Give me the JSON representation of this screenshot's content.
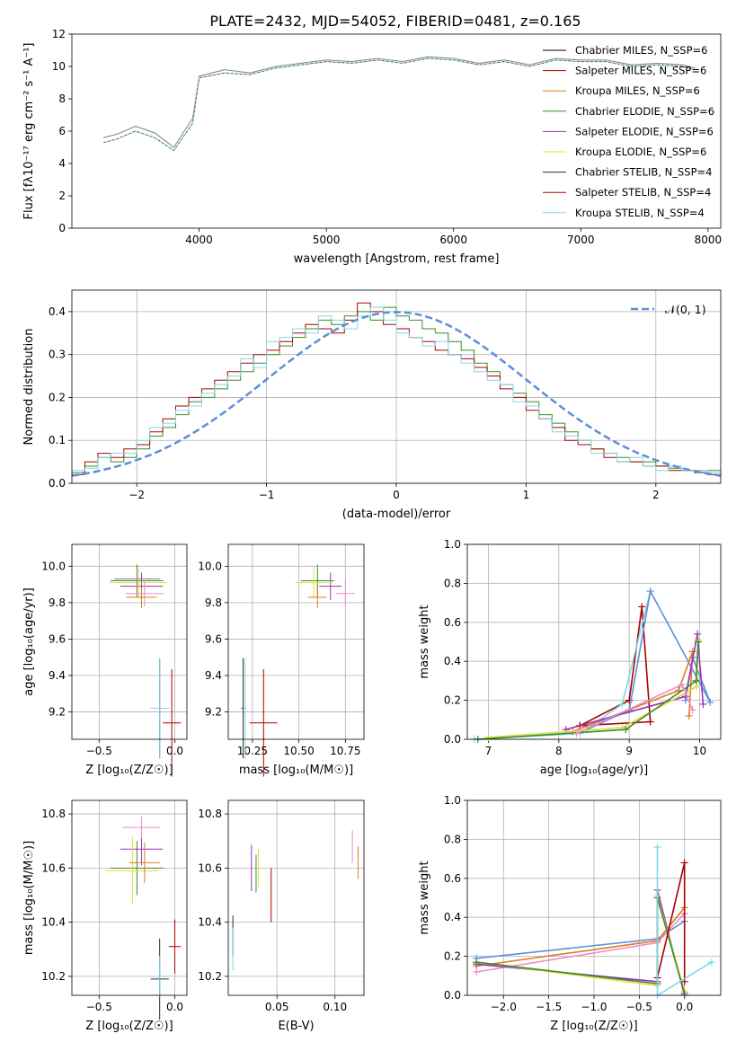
{
  "figure_title": "PLATE=2432, MJD=54052, FIBERID=0481, z=0.165",
  "model_colors": [
    "#000000",
    "#aa0000",
    "#e07b1f",
    "#3a8a2a",
    "#9b30c0",
    "#dede40",
    "#2a2a2a",
    "#aa0000",
    "#80d8e8"
  ],
  "chart_data": [
    {
      "panel": "spectrum",
      "type": "line",
      "title": "PLATE=2432, MJD=54052, FIBERID=0481, z=0.165",
      "xlabel": "wavelength [Angstrom, rest frame]",
      "ylabel": "Flux [fλ10⁻¹⁷ erg cm⁻² s⁻¹ A⁻¹]",
      "xlim": [
        3000,
        8100
      ],
      "ylim": [
        0,
        12
      ],
      "xticks": [
        "4000",
        "5000",
        "6000",
        "7000",
        "8000"
      ],
      "yticks": [
        "0",
        "2",
        "4",
        "6",
        "8",
        "10",
        "12"
      ],
      "grid": false,
      "legend_position": "right",
      "legend": [
        "Chabrier MILES, N_SSP=6",
        "Salpeter MILES, N_SSP=6",
        "Kroupa MILES, N_SSP=6",
        "Chabrier ELODIE, N_SSP=6",
        "Salpeter ELODIE, N_SSP=6",
        "Kroupa ELODIE, N_SSP=6",
        "Chabrier STELIB, N_SSP=4",
        "Salpeter STELIB, N_SSP=4",
        "Kroupa STELIB, N_SSP=4"
      ],
      "legend_colors": [
        "#000000",
        "#aa0000",
        "#e07b1f",
        "#3a8a2a",
        "#9b30c0",
        "#dede40",
        "#2a2a2a",
        "#aa0000",
        "#80d8e8"
      ],
      "data_wavelength": [
        3250,
        3350,
        3500,
        3650,
        3800,
        3950,
        4000,
        4200,
        4400,
        4600,
        4800,
        5000,
        5200,
        5400,
        5600,
        5800,
        6000,
        6200,
        6400,
        6600,
        6800,
        7000,
        7200,
        7400,
        7600,
        7800,
        7900
      ],
      "data_flux": [
        5.6,
        5.8,
        6.3,
        5.9,
        5.0,
        6.8,
        9.4,
        9.8,
        9.6,
        10.0,
        10.2,
        10.4,
        10.3,
        10.5,
        10.3,
        10.6,
        10.5,
        10.2,
        10.4,
        10.1,
        10.5,
        10.4,
        10.4,
        10.1,
        10.2,
        10.1,
        9.9
      ],
      "model_flux": [
        5.3,
        5.5,
        6.0,
        5.6,
        4.8,
        6.5,
        9.3,
        9.6,
        9.5,
        9.9,
        10.1,
        10.3,
        10.2,
        10.4,
        10.2,
        10.5,
        10.4,
        10.1,
        10.3,
        10.0,
        10.4,
        10.3,
        10.3,
        10.0,
        10.1,
        10.0,
        9.8
      ]
    },
    {
      "panel": "residuals",
      "type": "line",
      "xlabel": "(data-model)/error",
      "ylabel": "Normed distribution",
      "xlim": [
        -2.5,
        2.5
      ],
      "ylim": [
        0,
        0.45
      ],
      "xticks": [
        "−2",
        "−1",
        "0",
        "1",
        "2"
      ],
      "yticks": [
        "0.0",
        "0.1",
        "0.2",
        "0.3",
        "0.4"
      ],
      "grid": true,
      "legend": [
        "𝒩(0, 1)"
      ],
      "legend_position": "top-right",
      "bin_width": 0.1,
      "bin_start": -2.5,
      "series_heights": [
        [
          0.025,
          0.04,
          0.06,
          0.05,
          0.06,
          0.08,
          0.11,
          0.13,
          0.16,
          0.19,
          0.2,
          0.22,
          0.24,
          0.26,
          0.28,
          0.3,
          0.32,
          0.34,
          0.36,
          0.38,
          0.37,
          0.39,
          0.4,
          0.38,
          0.41,
          0.39,
          0.38,
          0.36,
          0.35,
          0.33,
          0.31,
          0.28,
          0.26,
          0.23,
          0.21,
          0.19,
          0.16,
          0.14,
          0.12,
          0.1,
          0.08,
          0.07,
          0.06,
          0.05,
          0.05,
          0.04,
          0.035,
          0.03,
          0.03,
          0.03
        ],
        [
          0.02,
          0.05,
          0.07,
          0.06,
          0.08,
          0.09,
          0.12,
          0.15,
          0.18,
          0.2,
          0.22,
          0.24,
          0.26,
          0.28,
          0.3,
          0.31,
          0.33,
          0.35,
          0.37,
          0.36,
          0.35,
          0.38,
          0.42,
          0.4,
          0.37,
          0.36,
          0.34,
          0.33,
          0.31,
          0.3,
          0.29,
          0.27,
          0.25,
          0.22,
          0.2,
          0.17,
          0.15,
          0.13,
          0.1,
          0.09,
          0.08,
          0.06,
          0.05,
          0.05,
          0.04,
          0.04,
          0.03,
          0.03,
          0.025,
          0.02
        ],
        [
          0.03,
          0.035,
          0.06,
          0.07,
          0.07,
          0.1,
          0.13,
          0.14,
          0.17,
          0.18,
          0.21,
          0.23,
          0.25,
          0.29,
          0.27,
          0.33,
          0.34,
          0.36,
          0.35,
          0.39,
          0.38,
          0.36,
          0.39,
          0.41,
          0.38,
          0.35,
          0.34,
          0.32,
          0.33,
          0.3,
          0.28,
          0.26,
          0.24,
          0.23,
          0.19,
          0.18,
          0.15,
          0.12,
          0.11,
          0.1,
          0.07,
          0.07,
          0.05,
          0.06,
          0.04,
          0.03,
          0.04,
          0.03,
          0.03,
          0.025
        ]
      ],
      "series_colors": [
        "#3a8a2a",
        "#aa0000",
        "#80d8e8"
      ],
      "normal_color": "#5b8fd9"
    },
    {
      "panel": "age-vs-Z",
      "type": "scatter",
      "xlabel": "Z [log₁₀(Z/Z☉)]",
      "ylabel": "age  [log₁₀(age/yr)]",
      "xlim": [
        -0.68,
        0.08
      ],
      "ylim": [
        9.05,
        10.12
      ],
      "xticks": [
        "−0.5",
        "0.0"
      ],
      "yticks": [
        "9.2",
        "9.4",
        "9.6",
        "9.8",
        "10.0"
      ],
      "grid": true,
      "points": [
        {
          "x": -0.25,
          "y": 9.92,
          "xerr": 0.35,
          "yerr": 0.18,
          "color": "#3a8a2a"
        },
        {
          "x": -0.22,
          "y": 9.89,
          "xerr": 0.28,
          "yerr": 0.15,
          "color": "#9b30c0"
        },
        {
          "x": -0.24,
          "y": 9.91,
          "xerr": 0.38,
          "yerr": 0.17,
          "color": "#dede40"
        },
        {
          "x": -0.2,
          "y": 9.85,
          "xerr": 0.25,
          "yerr": 0.14,
          "color": "#e88fc7"
        },
        {
          "x": -0.22,
          "y": 9.83,
          "xerr": 0.2,
          "yerr": 0.12,
          "color": "#e07b1f"
        },
        {
          "x": -0.25,
          "y": 9.93,
          "xerr": 0.3,
          "yerr": 0.12,
          "color": "#888888"
        },
        {
          "x": -0.1,
          "y": 9.22,
          "xerr": 0.12,
          "yerr": 0.55,
          "color": "#2a2a2a"
        },
        {
          "x": -0.02,
          "y": 9.14,
          "xerr": 0.12,
          "yerr": 0.59,
          "color": "#aa0000"
        },
        {
          "x": -0.1,
          "y": 9.22,
          "xerr": 0.12,
          "yerr": 0.55,
          "color": "#80d8e8"
        }
      ]
    },
    {
      "panel": "age-vs-mass",
      "type": "scatter",
      "xlabel": "mass [log₁₀(M/M☉)]",
      "ylabel": "",
      "xlim": [
        10.12,
        10.85
      ],
      "ylim": [
        9.05,
        10.12
      ],
      "xticks": [
        "10.25",
        "10.50",
        "10.75"
      ],
      "yticks": [
        "9.2",
        "9.4",
        "9.6",
        "9.8",
        "10.0"
      ],
      "grid": true,
      "points": [
        {
          "x": 10.6,
          "y": 9.92,
          "xerr": 0.18,
          "yerr": 0.18,
          "color": "#3a8a2a"
        },
        {
          "x": 10.67,
          "y": 9.89,
          "xerr": 0.12,
          "yerr": 0.15,
          "color": "#9b30c0"
        },
        {
          "x": 10.58,
          "y": 9.91,
          "xerr": 0.2,
          "yerr": 0.17,
          "color": "#dede40"
        },
        {
          "x": 10.75,
          "y": 9.85,
          "xerr": 0.1,
          "yerr": 0.14,
          "color": "#e88fc7"
        },
        {
          "x": 10.6,
          "y": 9.83,
          "xerr": 0.1,
          "yerr": 0.12,
          "color": "#e07b1f"
        },
        {
          "x": 10.2,
          "y": 9.22,
          "xerr": 0.02,
          "yerr": 0.55,
          "color": "#2a2a2a"
        },
        {
          "x": 10.31,
          "y": 9.14,
          "xerr": 0.15,
          "yerr": 0.59,
          "color": "#aa0000"
        },
        {
          "x": 10.21,
          "y": 9.22,
          "xerr": 0.02,
          "yerr": 0.55,
          "color": "#80d8e8"
        }
      ]
    },
    {
      "panel": "mass-weight-vs-age",
      "type": "line",
      "xlabel": "age  [log₁₀(age/yr)]",
      "ylabel": "mass weight",
      "xlim": [
        6.7,
        10.3
      ],
      "ylim": [
        0,
        1.0
      ],
      "xticks": [
        "7",
        "8",
        "9",
        "10"
      ],
      "yticks": [
        "0.0",
        "0.2",
        "0.4",
        "0.6",
        "0.8",
        "1.0"
      ],
      "grid": true,
      "series": [
        {
          "color": "#aa0000",
          "points": [
            [
              8.3,
              0.07
            ],
            [
              9.0,
              0.2
            ],
            [
              9.18,
              0.68
            ],
            [
              9.3,
              0.09
            ],
            [
              8.3,
              0.07
            ]
          ]
        },
        {
          "color": "#80d8e8",
          "points": [
            [
              6.8,
              0.0
            ],
            [
              8.3,
              0.03
            ],
            [
              8.9,
              0.18
            ],
            [
              9.3,
              0.76
            ]
          ]
        },
        {
          "color": "#5b8fd9",
          "points": [
            [
              8.4,
              0.05
            ],
            [
              9.0,
              0.15
            ],
            [
              9.3,
              0.76
            ],
            [
              10.15,
              0.19
            ],
            [
              9.9,
              0.42
            ],
            [
              9.8,
              0.2
            ]
          ]
        },
        {
          "color": "#e07b1f",
          "points": [
            [
              8.2,
              0.04
            ],
            [
              9.7,
              0.25
            ],
            [
              9.9,
              0.45
            ],
            [
              9.85,
              0.12
            ]
          ]
        },
        {
          "color": "#9b30c0",
          "points": [
            [
              8.1,
              0.05
            ],
            [
              9.8,
              0.22
            ],
            [
              9.97,
              0.54
            ],
            [
              10.05,
              0.18
            ]
          ]
        },
        {
          "color": "#dede40",
          "points": [
            [
              7.0,
              0.01
            ],
            [
              8.9,
              0.06
            ],
            [
              9.96,
              0.27
            ],
            [
              9.98,
              0.51
            ]
          ]
        },
        {
          "color": "#3a8a2a",
          "points": [
            [
              6.85,
              0.0
            ],
            [
              8.95,
              0.05
            ],
            [
              9.95,
              0.3
            ],
            [
              9.98,
              0.5
            ]
          ]
        },
        {
          "color": "#e88fc7",
          "points": [
            [
              8.25,
              0.03
            ],
            [
              9.75,
              0.28
            ],
            [
              9.9,
              0.15
            ]
          ]
        }
      ]
    },
    {
      "panel": "mass-vs-Z",
      "type": "scatter",
      "xlabel": "Z [log₁₀(Z/Z☉)]",
      "ylabel": "mass [log₁₀(M/M☉)]",
      "xlim": [
        -0.68,
        0.08
      ],
      "ylim": [
        10.13,
        10.85
      ],
      "xticks": [
        "−0.5",
        "0.0"
      ],
      "yticks": [
        "10.2",
        "10.4",
        "10.6",
        "10.8"
      ],
      "grid": true,
      "points": [
        {
          "x": -0.25,
          "y": 10.6,
          "xerr": 0.35,
          "yerr": 0.2,
          "color": "#3a8a2a"
        },
        {
          "x": -0.22,
          "y": 10.67,
          "xerr": 0.28,
          "yerr": 0.12,
          "color": "#9b30c0"
        },
        {
          "x": -0.28,
          "y": 10.59,
          "xerr": 0.35,
          "yerr": 0.25,
          "color": "#dede40"
        },
        {
          "x": -0.22,
          "y": 10.75,
          "xerr": 0.25,
          "yerr": 0.08,
          "color": "#e88fc7"
        },
        {
          "x": -0.2,
          "y": 10.62,
          "xerr": 0.2,
          "yerr": 0.15,
          "color": "#e07b1f"
        },
        {
          "x": -0.1,
          "y": 10.19,
          "xerr": 0.12,
          "yerr": 0.3,
          "color": "#2a2a2a"
        },
        {
          "x": -0.0,
          "y": 10.31,
          "xerr": 0.08,
          "yerr": 0.2,
          "color": "#aa0000"
        },
        {
          "x": -0.1,
          "y": 10.2,
          "xerr": 0.12,
          "yerr": 0.15,
          "color": "#80d8e8"
        }
      ]
    },
    {
      "panel": "mass-vs-EBV",
      "type": "scatter",
      "xlabel": "E(B-V)",
      "ylabel": "",
      "xlim": [
        0.008,
        0.125
      ],
      "ylim": [
        10.13,
        10.85
      ],
      "xticks": [
        "0.05",
        "0.10"
      ],
      "yticks": [
        "10.2",
        "10.4",
        "10.6",
        "10.8"
      ],
      "grid": true,
      "points": [
        {
          "x": 0.028,
          "y": 10.6,
          "xerr": 0,
          "yerr": 0.17,
          "color": "#9b30c0"
        },
        {
          "x": 0.032,
          "y": 10.58,
          "xerr": 0,
          "yerr": 0.14,
          "color": "#3a8a2a"
        },
        {
          "x": 0.034,
          "y": 10.6,
          "xerr": 0,
          "yerr": 0.14,
          "color": "#dede40"
        },
        {
          "x": 0.045,
          "y": 10.5,
          "xerr": 0,
          "yerr": 0.2,
          "color": "#aa0000"
        },
        {
          "x": 0.012,
          "y": 10.35,
          "xerr": 0,
          "yerr": 0.15,
          "color": "#2a2a2a"
        },
        {
          "x": 0.012,
          "y": 10.3,
          "xerr": 0,
          "yerr": 0.16,
          "color": "#80d8e8"
        },
        {
          "x": 0.115,
          "y": 10.68,
          "xerr": 0,
          "yerr": 0.12,
          "color": "#e88fc7"
        },
        {
          "x": 0.12,
          "y": 10.62,
          "xerr": 0,
          "yerr": 0.12,
          "color": "#e07b1f"
        }
      ]
    },
    {
      "panel": "mass-weight-vs-Z",
      "type": "line",
      "xlabel": "Z [log₁₀(Z/Z☉)]",
      "ylabel": "mass weight",
      "xlim": [
        -2.4,
        0.4
      ],
      "ylim": [
        0,
        1.0
      ],
      "xticks": [
        "−2.0",
        "−1.5",
        "−1.0",
        "−0.5",
        "0.0"
      ],
      "yticks": [
        "0.0",
        "0.2",
        "0.4",
        "0.6",
        "0.8",
        "1.0"
      ],
      "grid": true,
      "series": [
        {
          "color": "#5b8fd9",
          "points": [
            [
              -2.3,
              0.19
            ],
            [
              -0.3,
              0.29
            ],
            [
              0.0,
              0.38
            ]
          ]
        },
        {
          "color": "#e07b1f",
          "points": [
            [
              -2.3,
              0.15
            ],
            [
              -0.3,
              0.28
            ],
            [
              0.0,
              0.45
            ]
          ]
        },
        {
          "color": "#e88fc7",
          "points": [
            [
              -2.3,
              0.12
            ],
            [
              -0.3,
              0.27
            ],
            [
              0.0,
              0.42
            ]
          ]
        },
        {
          "color": "#9b30c0",
          "points": [
            [
              -2.3,
              0.16
            ],
            [
              -0.3,
              0.07
            ],
            [
              -0.3,
              0.54
            ],
            [
              0.0,
              0.0
            ]
          ]
        },
        {
          "color": "#dede40",
          "points": [
            [
              -2.3,
              0.17
            ],
            [
              -0.3,
              0.05
            ],
            [
              -0.3,
              0.51
            ],
            [
              0.0,
              0.02
            ]
          ]
        },
        {
          "color": "#3a8a2a",
          "points": [
            [
              -2.3,
              0.17
            ],
            [
              -0.3,
              0.06
            ],
            [
              -0.3,
              0.5
            ],
            [
              0.0,
              0.01
            ]
          ]
        },
        {
          "color": "#aa0000",
          "points": [
            [
              -0.3,
              0.09
            ],
            [
              0.0,
              0.68
            ],
            [
              0.0,
              0.07
            ]
          ]
        },
        {
          "color": "#80d8e8",
          "points": [
            [
              -0.3,
              0.76
            ],
            [
              -0.3,
              0.0
            ],
            [
              0.3,
              0.17
            ]
          ]
        }
      ]
    }
  ]
}
